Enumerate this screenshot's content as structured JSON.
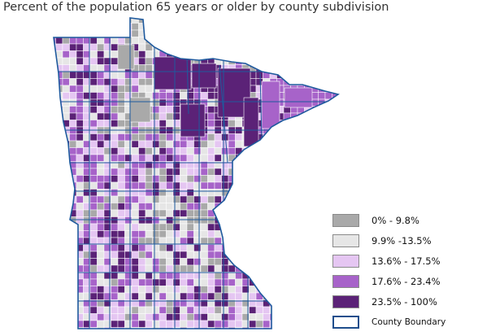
{
  "title": "Percent of the population 65 years or older by county subdivision",
  "map": {
    "region": "Minnesota",
    "boundary_color": "#1f5a9e",
    "grid_color": "#ffffff"
  },
  "legend": {
    "classes": [
      {
        "label": "0% - 9.8%",
        "color": "#a9a9a9"
      },
      {
        "label": "9.9% -13.5%",
        "color": "#e6e6e6"
      },
      {
        "label": "13.6% - 17.5%",
        "color": "#e5c6f2"
      },
      {
        "label": "17.6% - 23.4%",
        "color": "#a763c9"
      },
      {
        "label": "23.5% - 100%",
        "color": "#5b2277"
      }
    ],
    "boundary": {
      "label": "County Boundary",
      "color": "#1f4e8c"
    }
  }
}
